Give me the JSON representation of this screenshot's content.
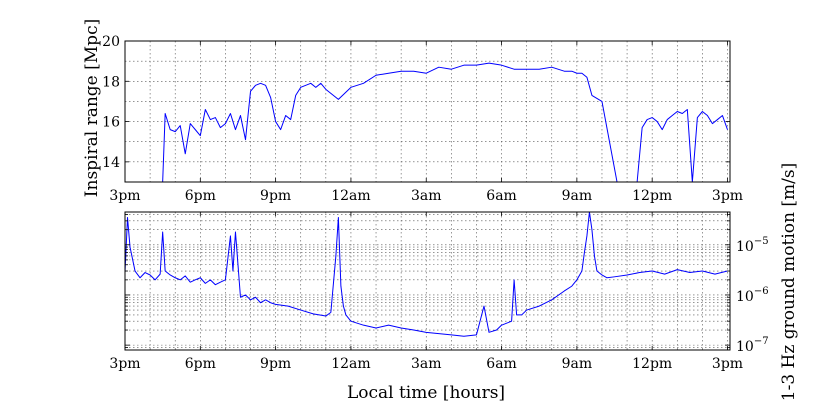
{
  "chart_data": [
    {
      "type": "line",
      "panel": "top",
      "title": "",
      "xlabel": "",
      "ylabel": "Inspiral range [Mpc]",
      "x_unit": "hours since 3pm",
      "xlim": [
        0,
        24.1
      ],
      "ylim": [
        13,
        20
      ],
      "y_scale": "linear",
      "x_ticks": [
        0,
        3,
        6,
        9,
        12,
        15,
        18,
        21,
        24
      ],
      "x_tick_labels": [
        "3pm",
        "6pm",
        "9pm",
        "12am",
        "3am",
        "6am",
        "9am",
        "12pm",
        "3pm"
      ],
      "y_ticks": [
        14,
        16,
        18,
        20
      ],
      "y_tick_labels": [
        "14",
        "16",
        "18",
        "20"
      ],
      "grid": true,
      "color": "#0000ff",
      "series": [
        {
          "x": [
            1.5,
            1.6,
            1.8,
            2.0,
            2.2,
            2.4,
            2.6,
            2.8,
            3.0,
            3.2,
            3.4,
            3.6,
            3.8,
            4.0,
            4.2,
            4.4,
            4.6,
            4.8,
            5.0,
            5.2,
            5.4,
            5.6,
            5.8,
            6.0,
            6.2,
            6.4,
            6.6,
            6.8,
            7.0,
            7.2,
            7.4,
            7.6,
            7.8,
            8.0,
            8.2,
            8.5,
            9.0,
            9.5,
            10.0,
            10.5,
            11.0,
            11.5,
            12.0,
            12.5,
            13.0,
            13.5,
            14.0,
            14.5,
            15.0,
            15.5,
            16.0,
            16.5,
            17.0,
            17.5,
            17.8,
            18.0,
            18.2,
            18.4,
            18.6,
            19.0,
            19.6,
            19.8,
            20.0,
            20.2,
            20.4,
            20.6,
            20.8,
            21.0,
            21.2,
            21.4,
            21.6,
            21.8,
            22.0,
            22.2,
            22.4,
            22.6,
            22.8,
            23.0,
            23.2,
            23.4,
            23.6,
            23.8,
            24.0
          ],
          "values": [
            13.0,
            16.4,
            15.6,
            15.5,
            15.8,
            14.4,
            15.9,
            15.6,
            15.3,
            16.6,
            16.1,
            16.2,
            15.7,
            15.9,
            16.4,
            15.6,
            16.3,
            15.1,
            17.5,
            17.8,
            17.9,
            17.8,
            17.2,
            16.0,
            15.6,
            16.3,
            16.1,
            17.3,
            17.7,
            17.8,
            17.9,
            17.7,
            17.9,
            17.6,
            17.4,
            17.1,
            17.7,
            17.9,
            18.3,
            18.4,
            18.5,
            18.5,
            18.4,
            18.7,
            18.6,
            18.8,
            18.8,
            18.9,
            18.8,
            18.6,
            18.6,
            18.6,
            18.7,
            18.5,
            18.5,
            18.4,
            18.4,
            18.2,
            17.3,
            17.0,
            13.0,
            13.0,
            13.0,
            13.0,
            13.0,
            15.7,
            16.1,
            16.2,
            16.0,
            15.6,
            16.1,
            16.3,
            16.5,
            16.4,
            16.6,
            13.0,
            16.2,
            16.5,
            16.3,
            15.9,
            16.1,
            16.3,
            15.6
          ]
        }
      ]
    },
    {
      "type": "line",
      "panel": "bottom",
      "title": "",
      "xlabel": "Local time [hours]",
      "ylabel": "1-3 Hz ground motion [m/s]",
      "x_unit": "hours since 3pm",
      "xlim": [
        0,
        24.1
      ],
      "ylim": [
        8e-08,
        4.5e-05
      ],
      "y_scale": "log",
      "x_ticks": [
        0,
        3,
        6,
        9,
        12,
        15,
        18,
        21,
        24
      ],
      "x_tick_labels": [
        "3pm",
        "6pm",
        "9pm",
        "12am",
        "3am",
        "6am",
        "9am",
        "12pm",
        "3pm"
      ],
      "y_ticks": [
        1e-07,
        1e-06,
        1e-05
      ],
      "y_tick_labels": [
        "10",
        "10",
        "10"
      ],
      "y_tick_exponents": [
        "−7",
        "−6",
        "−5"
      ],
      "grid": true,
      "color": "#0000ff",
      "series": [
        {
          "x": [
            0.0,
            0.1,
            0.2,
            0.4,
            0.6,
            0.8,
            1.0,
            1.2,
            1.4,
            1.5,
            1.6,
            1.8,
            2.0,
            2.2,
            2.4,
            2.6,
            2.8,
            3.0,
            3.2,
            3.4,
            3.6,
            3.8,
            4.0,
            4.2,
            4.3,
            4.4,
            4.6,
            4.8,
            5.0,
            5.2,
            5.4,
            5.6,
            5.8,
            6.0,
            6.5,
            7.0,
            7.5,
            8.0,
            8.2,
            8.4,
            8.5,
            8.6,
            8.7,
            8.8,
            9.0,
            9.5,
            10.0,
            10.5,
            11.0,
            11.5,
            12.0,
            12.5,
            13.0,
            13.5,
            14.0,
            14.3,
            14.5,
            14.8,
            15.0,
            15.4,
            15.5,
            15.6,
            15.8,
            16.0,
            16.5,
            17.0,
            17.5,
            17.8,
            18.0,
            18.2,
            18.3,
            18.4,
            18.5,
            18.6,
            18.7,
            18.8,
            19.0,
            19.2,
            19.5,
            20.0,
            20.5,
            21.0,
            21.5,
            22.0,
            22.5,
            23.0,
            23.5,
            24.0
          ],
          "values": [
            2.8e-06,
            3.5e-05,
            9e-06,
            3e-06,
            2.2e-06,
            2.8e-06,
            2.5e-06,
            2e-06,
            2.6e-06,
            1.8e-05,
            3e-06,
            2.5e-06,
            2.2e-06,
            2e-06,
            2.4e-06,
            1.8e-06,
            2e-06,
            2.2e-06,
            1.7e-06,
            2e-06,
            1.6e-06,
            1.8e-06,
            2e-06,
            1.5e-05,
            3e-06,
            1.8e-05,
            9e-07,
            1e-06,
            8e-07,
            9e-07,
            7e-07,
            8e-07,
            7e-07,
            6.5e-07,
            6e-07,
            5e-07,
            4.2e-07,
            3.8e-07,
            4.5e-07,
            6e-06,
            3.5e-05,
            1.5e-06,
            6e-07,
            4e-07,
            3e-07,
            2.5e-07,
            2.2e-07,
            2.5e-07,
            2.2e-07,
            2e-07,
            1.8e-07,
            1.7e-07,
            1.6e-07,
            1.5e-07,
            1.6e-07,
            6e-07,
            1.8e-07,
            2e-07,
            2.5e-07,
            3e-07,
            2e-06,
            4e-07,
            4e-07,
            5e-07,
            6e-07,
            8e-07,
            1.2e-06,
            1.5e-06,
            2e-06,
            3e-06,
            7e-06,
            1.5e-05,
            4.5e-05,
            2e-05,
            6e-06,
            3e-06,
            2.5e-06,
            2.2e-06,
            2.3e-06,
            2.5e-06,
            2.8e-06,
            3e-06,
            2.6e-06,
            3.2e-06,
            2.8e-06,
            3e-06,
            2.6e-06,
            3e-06
          ]
        }
      ]
    }
  ]
}
